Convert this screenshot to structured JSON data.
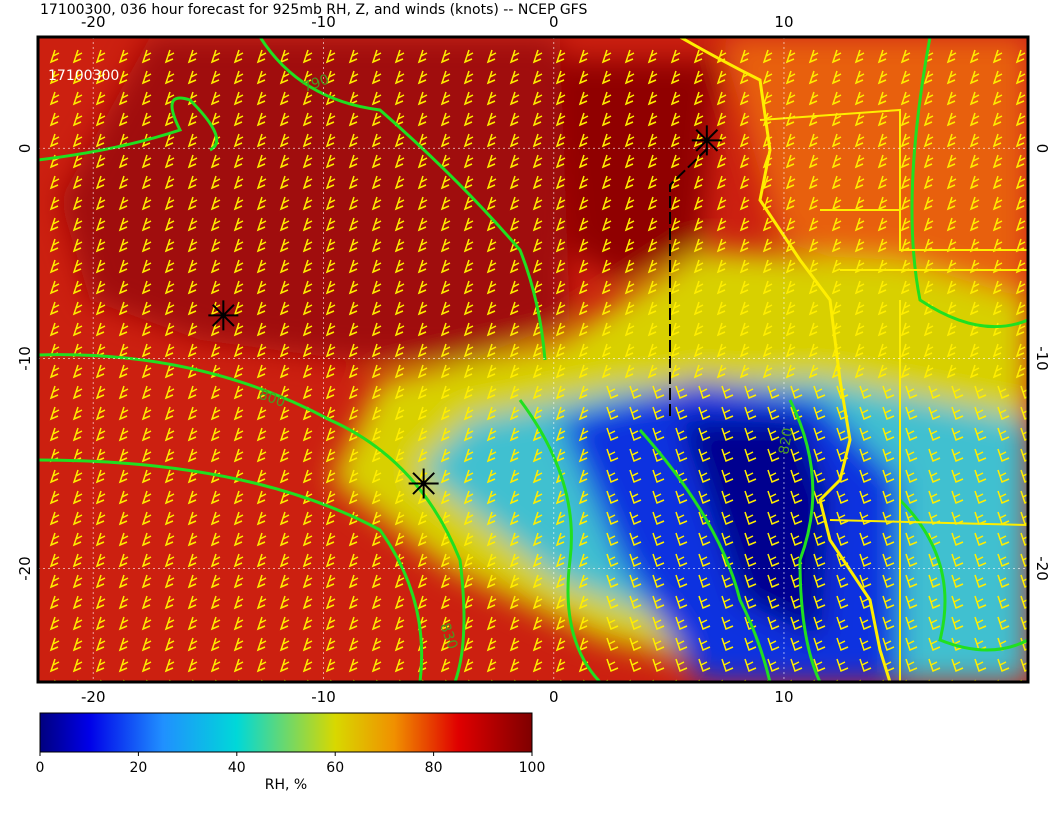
{
  "title": "17100300, 036 hour forecast for 925mb RH, Z, and winds (knots) -- NCEP GFS",
  "timestamp": "17100300",
  "map": {
    "xlim": [
      -22.4,
      20.6
    ],
    "ylim": [
      -25.4,
      5.3
    ],
    "xticks": [
      -20,
      -10,
      0,
      10
    ],
    "yticks": [
      0,
      -10,
      -20
    ],
    "markers": [
      {
        "lon": -14.35,
        "lat": -7.95
      },
      {
        "lon": -5.65,
        "lat": -15.95
      },
      {
        "lon": 6.65,
        "lat": 0.38
      }
    ],
    "contour_labels": [
      "790",
      "800",
      "830",
      "820"
    ]
  },
  "colorbar": {
    "lim": [
      0,
      100
    ],
    "ticks": [
      0,
      20,
      40,
      60,
      80,
      100
    ],
    "label": "RH, %"
  }
}
